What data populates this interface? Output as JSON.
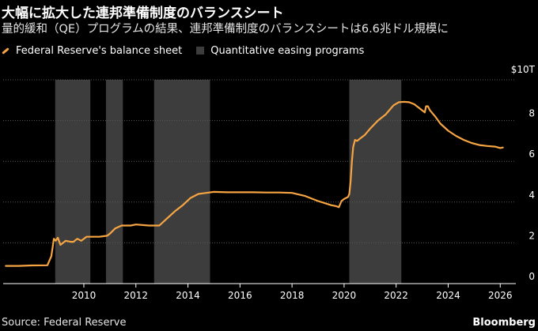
{
  "header": {
    "title": "大幅に拡大した連邦準備制度のバランスシート",
    "subtitle": "量的緩和（QE）プログラムの結果、連邦準備制度のバランスシートは6.6兆ドル規模に"
  },
  "legend": {
    "series_label": "Federal Reserve's balance sheet",
    "band_label": "Quantitative easing programs"
  },
  "footer": {
    "source": "Source: Federal Reserve",
    "brand": "Bloomberg"
  },
  "colors": {
    "line": "#f7a543",
    "band": "#3d3d3d",
    "grid": "#5a5a5a",
    "background": "#000000"
  },
  "chart_data": {
    "type": "line",
    "title": "大幅に拡大した連邦準備制度のバランスシート",
    "xlim": [
      2006.9,
      2026.6
    ],
    "ylim": [
      0,
      10
    ],
    "x_ticks": [
      2010,
      2012,
      2014,
      2016,
      2018,
      2020,
      2022,
      2024,
      2026
    ],
    "y_ticks": [
      0,
      2,
      4,
      6,
      8,
      10
    ],
    "y_tick_labels": [
      "0",
      "2",
      "4",
      "6",
      "8",
      "$10T"
    ],
    "grid": true,
    "legend_position": "top-left",
    "qe_periods": [
      [
        2008.9,
        2010.25
      ],
      [
        2010.85,
        2011.5
      ],
      [
        2012.7,
        2014.85
      ],
      [
        2020.2,
        2022.2
      ]
    ],
    "series": [
      {
        "name": "Federal Reserve's balance sheet",
        "x": [
          2007.0,
          2007.5,
          2008.0,
          2008.6,
          2008.75,
          2008.85,
          2008.92,
          2009.0,
          2009.1,
          2009.2,
          2009.3,
          2009.5,
          2009.6,
          2009.75,
          2009.9,
          2010.1,
          2010.3,
          2010.6,
          2010.9,
          2011.0,
          2011.2,
          2011.45,
          2011.6,
          2011.8,
          2012.0,
          2012.5,
          2012.9,
          2013.2,
          2013.5,
          2013.8,
          2014.1,
          2014.4,
          2014.7,
          2015.0,
          2015.5,
          2016.0,
          2016.5,
          2017.0,
          2017.5,
          2018.0,
          2018.5,
          2019.0,
          2019.5,
          2019.7,
          2019.8,
          2019.9,
          2020.0,
          2020.15,
          2020.2,
          2020.25,
          2020.3,
          2020.35,
          2020.42,
          2020.5,
          2020.6,
          2020.8,
          2021.0,
          2021.3,
          2021.6,
          2021.9,
          2022.1,
          2022.3,
          2022.5,
          2022.7,
          2022.9,
          2023.1,
          2023.15,
          2023.22,
          2023.3,
          2023.5,
          2023.7,
          2024.0,
          2024.3,
          2024.6,
          2024.9,
          2025.2,
          2025.5,
          2025.8,
          2026.0,
          2026.1
        ],
        "values": [
          0.87,
          0.87,
          0.89,
          0.9,
          1.35,
          2.2,
          2.1,
          2.25,
          1.9,
          2.0,
          2.1,
          2.05,
          2.05,
          2.2,
          2.1,
          2.3,
          2.3,
          2.3,
          2.35,
          2.45,
          2.7,
          2.85,
          2.85,
          2.85,
          2.9,
          2.85,
          2.85,
          3.2,
          3.55,
          3.85,
          4.2,
          4.4,
          4.45,
          4.5,
          4.48,
          4.48,
          4.48,
          4.47,
          4.47,
          4.45,
          4.3,
          4.05,
          3.85,
          3.8,
          3.75,
          4.05,
          4.15,
          4.25,
          4.4,
          5.0,
          6.0,
          6.7,
          7.05,
          7.0,
          7.1,
          7.3,
          7.6,
          8.0,
          8.3,
          8.75,
          8.9,
          8.92,
          8.9,
          8.8,
          8.6,
          8.4,
          8.7,
          8.7,
          8.5,
          8.2,
          7.85,
          7.5,
          7.25,
          7.05,
          6.9,
          6.8,
          6.75,
          6.72,
          6.65,
          6.68
        ]
      }
    ]
  }
}
